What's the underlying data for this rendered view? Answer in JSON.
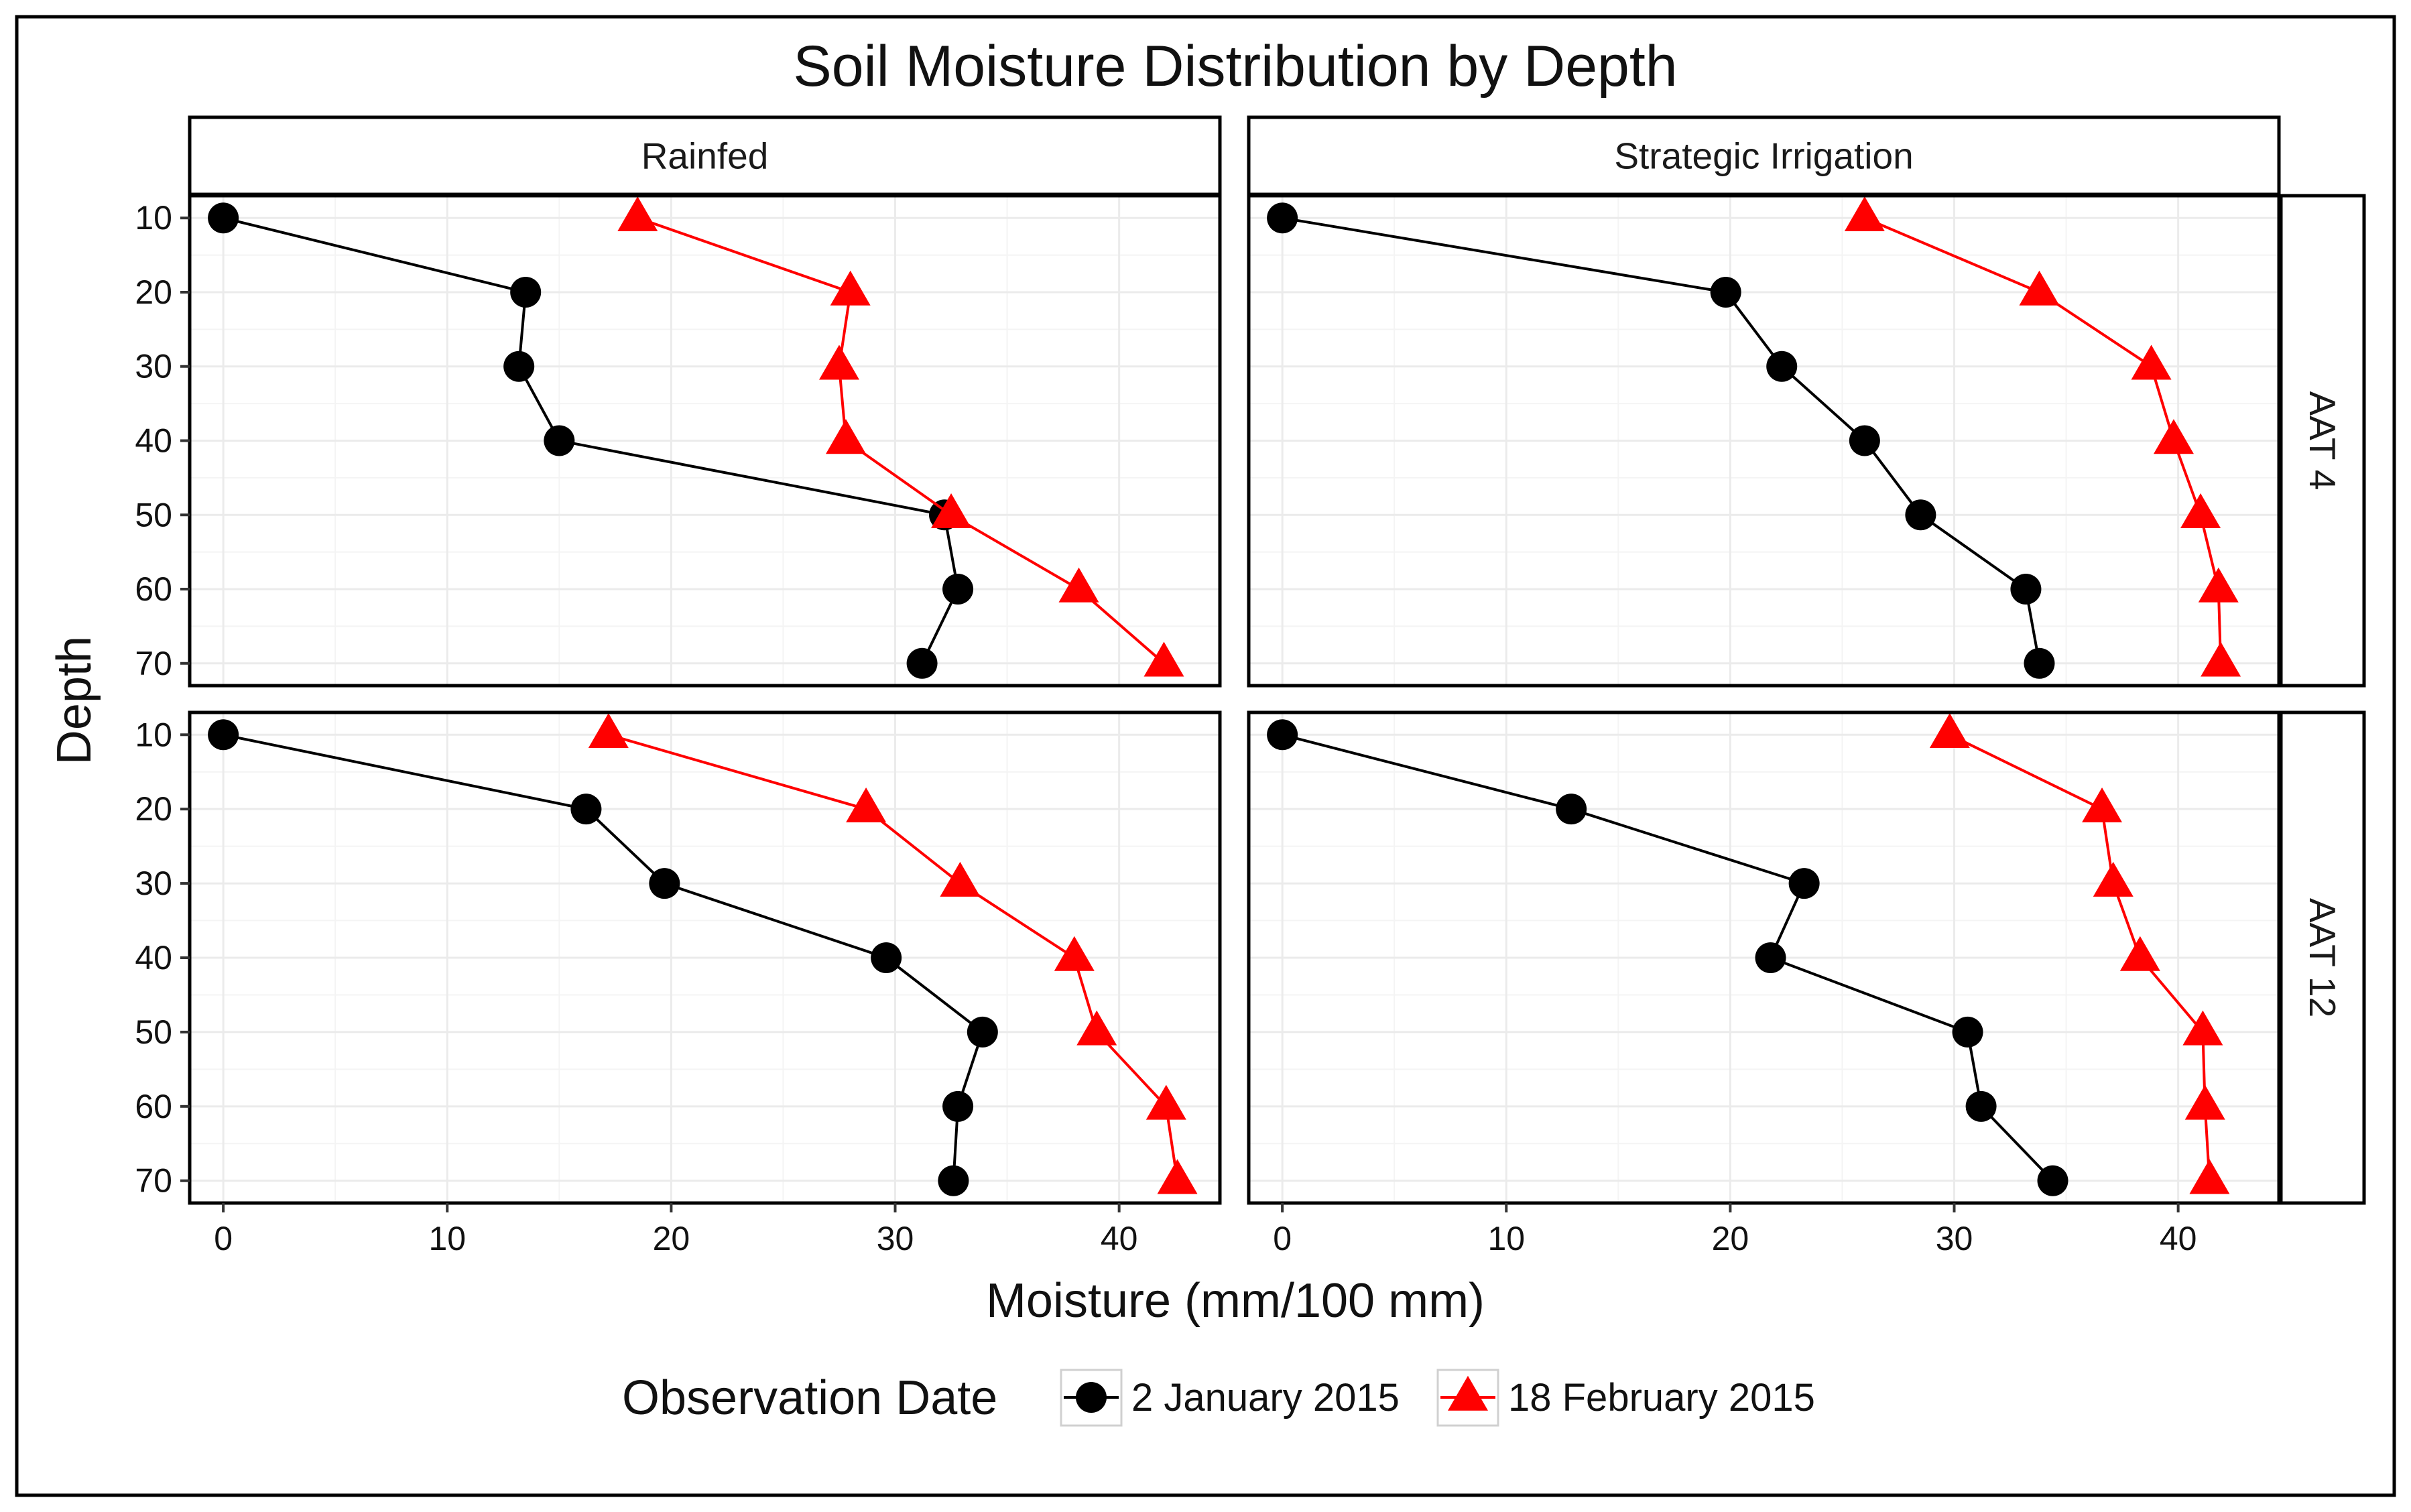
{
  "chart_data": {
    "type": "line",
    "title": "Soil Moisture Distribution by Depth",
    "xlabel": "Moisture (mm/100 mm)",
    "ylabel": "Depth",
    "xlim": [
      -1.5,
      44.5
    ],
    "ylim": [
      7,
      73
    ],
    "x_ticks": [
      0,
      10,
      20,
      30,
      40
    ],
    "y_ticks": [
      10,
      20,
      30,
      40,
      50,
      60,
      70
    ],
    "y_reversed": true,
    "grid": true,
    "legend": {
      "title": "Observation Date",
      "position": "bottom",
      "entries": [
        {
          "name": "2 January 2015",
          "color": "#000000",
          "marker": "circle"
        },
        {
          "name": "18 February 2015",
          "color": "#ff0000",
          "marker": "triangle"
        }
      ]
    },
    "depths": [
      10,
      20,
      30,
      40,
      50,
      60,
      70
    ],
    "column_facets": [
      "Rainfed",
      "Strategic Irrigation"
    ],
    "row_facets": [
      "AAT 4",
      "AAT 12"
    ],
    "panels": [
      {
        "column": "Rainfed",
        "row": "AAT 4",
        "series": [
          {
            "name": "2 January 2015",
            "values": [
              0,
              13.5,
              13.2,
              15,
              32.2,
              32.8,
              31.2
            ]
          },
          {
            "name": "18 February 2015",
            "values": [
              18.5,
              28,
              27.5,
              27.8,
              32.5,
              38.2,
              42
            ]
          }
        ]
      },
      {
        "column": "Strategic Irrigation",
        "row": "AAT 4",
        "series": [
          {
            "name": "2 January 2015",
            "values": [
              0,
              19.8,
              22.3,
              26,
              28.5,
              33.2,
              33.8
            ]
          },
          {
            "name": "18 February 2015",
            "values": [
              26,
              33.8,
              38.8,
              39.8,
              41,
              41.8,
              41.9
            ]
          }
        ]
      },
      {
        "column": "Rainfed",
        "row": "AAT 12",
        "series": [
          {
            "name": "2 January 2015",
            "values": [
              0,
              16.2,
              19.7,
              29.6,
              33.9,
              32.8,
              32.6
            ]
          },
          {
            "name": "18 February 2015",
            "values": [
              17.2,
              28.7,
              32.9,
              38,
              39,
              42.1,
              42.6
            ]
          }
        ]
      },
      {
        "column": "Strategic Irrigation",
        "row": "AAT 12",
        "series": [
          {
            "name": "2 January 2015",
            "values": [
              0,
              12.9,
              23.3,
              21.8,
              30.6,
              31.2,
              34.4
            ]
          },
          {
            "name": "18 February 2015",
            "values": [
              29.8,
              36.6,
              37.1,
              38.3,
              41.1,
              41.2,
              41.4
            ]
          }
        ]
      }
    ]
  },
  "colors": {
    "series_0": "#000000",
    "series_1": "#ff0000",
    "grid": "#ebebeb",
    "panel_border": "#000000"
  }
}
